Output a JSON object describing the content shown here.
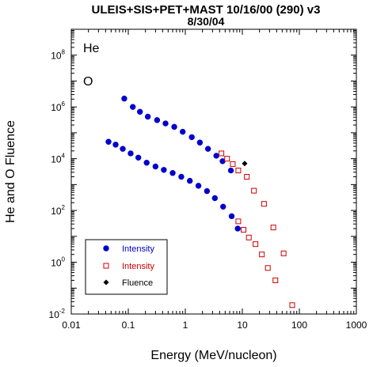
{
  "chart_data": {
    "type": "scatter",
    "title_line_1": "ULEIS+SIS+PET+MAST  10/16/00 (290) v3",
    "title_line_2": "8/30/04",
    "xlabel": "Energy (MeV/nucleon)",
    "ylabel": "He and O Fluence",
    "xscale": "log",
    "yscale": "log",
    "xlim": [
      0.01,
      1000
    ],
    "ylim": [
      0.01,
      1000000000
    ],
    "x_ticks": [
      {
        "value": 0.01,
        "label": "0.01"
      },
      {
        "value": 0.1,
        "label": "0.1"
      },
      {
        "value": 1,
        "label": "1"
      },
      {
        "value": 10,
        "label": "10"
      },
      {
        "value": 100,
        "label": "100"
      },
      {
        "value": 1000,
        "label": "1000"
      }
    ],
    "y_ticks": [
      {
        "value": 0.01,
        "base": "10",
        "exp": "-2"
      },
      {
        "value": 1,
        "base": "10",
        "exp": "0"
      },
      {
        "value": 100,
        "base": "10",
        "exp": "2"
      },
      {
        "value": 10000,
        "base": "10",
        "exp": "4"
      },
      {
        "value": 1000000,
        "base": "10",
        "exp": "6"
      },
      {
        "value": 100000000,
        "base": "10",
        "exp": "8"
      }
    ],
    "panel_labels": [
      "He",
      "O"
    ],
    "legend": [
      {
        "label": "Intensity",
        "color": "#0000cc",
        "marker": "filled-circle"
      },
      {
        "label": "Intensity",
        "color": "#cc0000",
        "marker": "open-square"
      },
      {
        "label": "Fluence",
        "color": "#000000",
        "marker": "filled-diamond"
      }
    ],
    "series": [
      {
        "species": "He",
        "instrument_group": "Intensity",
        "color": "#0000cc",
        "marker": "filled-circle",
        "points": [
          [
            0.085,
            2100000
          ],
          [
            0.12,
            1000000
          ],
          [
            0.16,
            650000
          ],
          [
            0.22,
            420000
          ],
          [
            0.32,
            310000
          ],
          [
            0.45,
            230000
          ],
          [
            0.64,
            170000
          ],
          [
            0.9,
            110000
          ],
          [
            1.3,
            68000
          ],
          [
            1.8,
            42000
          ],
          [
            2.5,
            24000
          ],
          [
            3.5,
            13000
          ],
          [
            4.5,
            8000
          ],
          [
            6.3,
            3500
          ]
        ]
      },
      {
        "species": "He",
        "instrument_group": "Intensity",
        "color": "#cc0000",
        "marker": "open-square",
        "points": [
          [
            4.3,
            16000
          ],
          [
            5.4,
            10000
          ],
          [
            6.8,
            6200
          ],
          [
            8.5,
            3500
          ],
          [
            12,
            2000
          ],
          [
            16,
            580
          ],
          [
            24,
            180
          ],
          [
            35,
            22
          ],
          [
            53,
            2.2
          ],
          [
            75,
            0.022
          ]
        ]
      },
      {
        "species": "He",
        "instrument_group": "Fluence",
        "color": "#000000",
        "marker": "filled-diamond",
        "points": [
          [
            11,
            6500
          ]
        ]
      },
      {
        "species": "O",
        "instrument_group": "Intensity",
        "color": "#0000cc",
        "marker": "filled-circle",
        "points": [
          [
            0.045,
            45000
          ],
          [
            0.06,
            35000
          ],
          [
            0.08,
            24000
          ],
          [
            0.11,
            16000
          ],
          [
            0.15,
            11000
          ],
          [
            0.21,
            7000
          ],
          [
            0.3,
            5000
          ],
          [
            0.42,
            3700
          ],
          [
            0.6,
            2800
          ],
          [
            0.85,
            2000
          ],
          [
            1.2,
            1400
          ],
          [
            1.7,
            900
          ],
          [
            2.4,
            560
          ],
          [
            3.3,
            300
          ],
          [
            4.6,
            140
          ],
          [
            6.5,
            60
          ],
          [
            8.3,
            20
          ]
        ]
      },
      {
        "species": "O",
        "instrument_group": "Intensity",
        "color": "#cc0000",
        "marker": "open-square",
        "points": [
          [
            8.5,
            38
          ],
          [
            10.5,
            18
          ],
          [
            13,
            9
          ],
          [
            17,
            5
          ],
          [
            22,
            2
          ],
          [
            28,
            0.6
          ],
          [
            38,
            0.2
          ]
        ]
      }
    ]
  }
}
